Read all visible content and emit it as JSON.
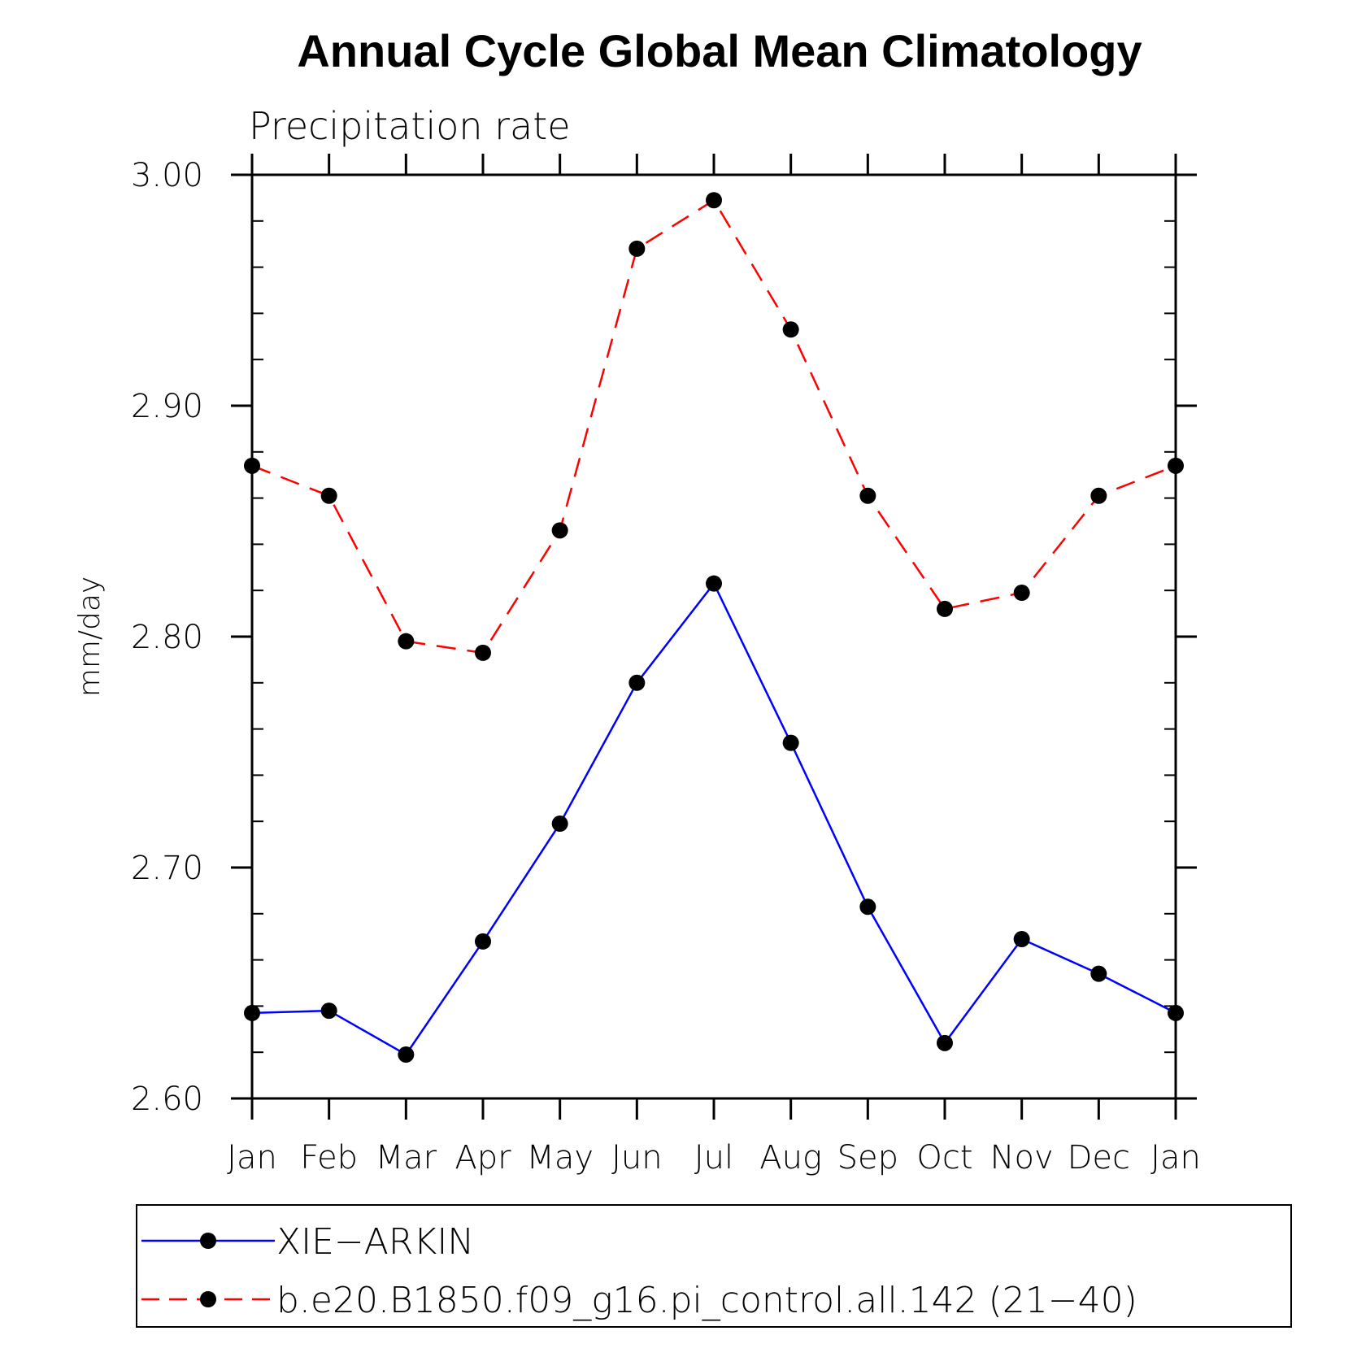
{
  "chart_data": {
    "type": "line",
    "title": "Annual Cycle Global Mean Climatology",
    "subtitle": "Precipitation rate",
    "ylabel": "mm/day",
    "xlabel": "",
    "categories": [
      "Jan",
      "Feb",
      "Mar",
      "Apr",
      "May",
      "Jun",
      "Jul",
      "Aug",
      "Sep",
      "Oct",
      "Nov",
      "Dec",
      "Jan"
    ],
    "ylim": [
      2.6,
      3.0
    ],
    "yticks": [
      "2.60",
      "2.70",
      "2.80",
      "2.90",
      "3.00"
    ],
    "ytick_values": [
      2.6,
      2.7,
      2.8,
      2.9,
      3.0
    ],
    "grid": false,
    "legend_position": "bottom",
    "series": [
      {
        "name": "XIE−ARKIN",
        "color": "#0000ff",
        "dash": "solid",
        "values": [
          2.637,
          2.638,
          2.619,
          2.668,
          2.719,
          2.78,
          2.823,
          2.754,
          2.683,
          2.624,
          2.669,
          2.654,
          2.637
        ]
      },
      {
        "name": "b.e20.B1850.f09_g16.pi_control.all.142 (21−40)",
        "color": "#ff0000",
        "dash": "dashed",
        "values": [
          2.874,
          2.861,
          2.798,
          2.793,
          2.846,
          2.968,
          2.989,
          2.933,
          2.861,
          2.812,
          2.819,
          2.861,
          2.874
        ]
      }
    ]
  }
}
